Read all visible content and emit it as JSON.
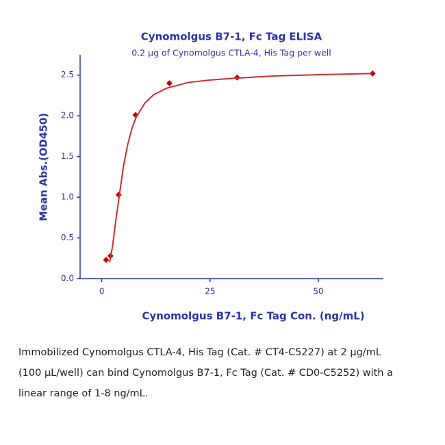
{
  "chart_data": {
    "type": "scatter",
    "title": "Cynomolgus B7-1, Fc Tag ELISA",
    "subtitle": "0.2 μg of Cynomolgus CTLA-4, His Tag per well",
    "x_label": "Cynomolgus B7-1, Fc Tag Con. (ng/mL)",
    "y_label": "Mean Abs.(OD450)",
    "series": [
      {
        "type": "scatter",
        "color": "#c00000",
        "x": [
          1,
          2,
          3.9,
          7.8,
          15.6,
          31.25,
          62.5
        ],
        "values": [
          0.23,
          0.28,
          1.03,
          2.01,
          2.4,
          2.47,
          2.52
        ]
      },
      {
        "type": "line",
        "color": "#d42a2a",
        "x": [
          1.8,
          2.5,
          3,
          4,
          5,
          6,
          7,
          8,
          10,
          12,
          15,
          20,
          25,
          30,
          40,
          50,
          62.5
        ],
        "values": [
          0.2,
          0.4,
          0.62,
          1.0,
          1.38,
          1.65,
          1.85,
          1.99,
          2.16,
          2.26,
          2.34,
          2.41,
          2.44,
          2.46,
          2.49,
          2.505,
          2.52
        ]
      }
    ],
    "xlim": [
      -5,
      65
    ],
    "ylim": [
      0,
      2.75
    ],
    "xticks": [
      0,
      25,
      50
    ],
    "yticks": [
      {
        "value": 0,
        "label": "0.0"
      },
      0.5,
      {
        "value": 1,
        "label": "1.0"
      },
      1.5,
      {
        "value": 2,
        "label": "2.0"
      },
      2.5
    ],
    "axis_color": "#2a35a8"
  },
  "caption": [
    "Immobilized Cynomolgus CTLA-4, His Tag (Cat. # CT4-C5227) at 2 μg/mL",
    "(100 μL/well) can bind Cynomolgus B7-1, Fc Tag (Cat. # CD0-C5252) with a",
    "linear range of 1-8 ng/mL."
  ]
}
